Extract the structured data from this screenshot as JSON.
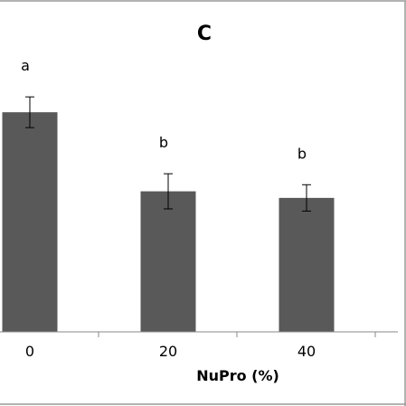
{
  "chart_data": {
    "type": "bar",
    "title": "C",
    "xlabel": "NuPro (%)",
    "ylabel": "",
    "categories": [
      "0",
      "20",
      "40"
    ],
    "values": [
      100,
      64,
      61
    ],
    "error": [
      7,
      8,
      6
    ],
    "significance": [
      "a",
      "b",
      "b"
    ],
    "ylim": [
      0,
      112
    ],
    "grid": false,
    "bar_color": "#595959"
  }
}
